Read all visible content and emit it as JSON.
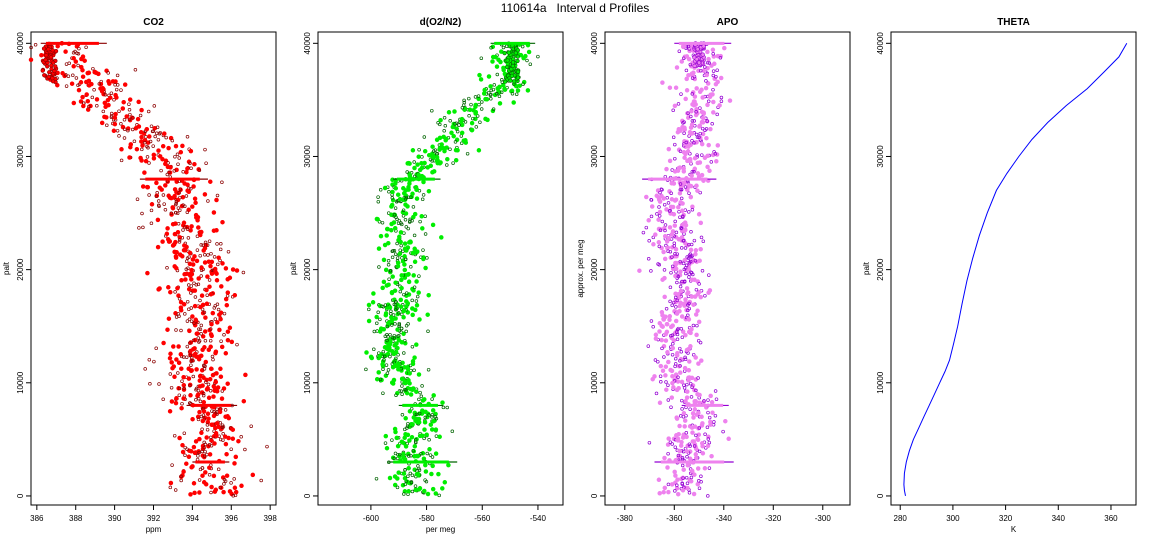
{
  "figure_title": "110614a   Interval d Profiles",
  "chart_data": [
    {
      "type": "scatter",
      "title": "CO2",
      "xlabel": "ppm",
      "ylabel": "palt",
      "xlim": [
        385.7,
        398.3
      ],
      "ylim": [
        -800,
        41000
      ],
      "xticks": [
        386,
        388,
        390,
        392,
        394,
        396,
        398
      ],
      "yticks": [
        0,
        10000,
        20000,
        30000,
        40000
      ],
      "color": "#ff0000",
      "edge_color": "#8b0000",
      "profile": {
        "y": [
          0,
          2000,
          4000,
          6000,
          8000,
          10000,
          12000,
          14000,
          16000,
          18000,
          20000,
          22000,
          24000,
          26000,
          28000,
          30000,
          32000,
          34000,
          36000,
          38000,
          40000
        ],
        "x": [
          395.2,
          394.9,
          394.8,
          395.2,
          394.6,
          394.1,
          394.0,
          394.3,
          394.5,
          394.2,
          394.4,
          394.0,
          393.7,
          393.2,
          393.0,
          392.5,
          391.4,
          390.1,
          389.0,
          388.2,
          387.3
        ]
      },
      "spread": 0.9,
      "levels": [
        {
          "y": 40000,
          "x0": 386.2,
          "x1": 389.6
        },
        {
          "y": 28000,
          "x0": 391.3,
          "x1": 394.8
        },
        {
          "y": 8000,
          "x0": 393.7,
          "x1": 396.3
        },
        {
          "y": 3000,
          "x0": 394.0,
          "x1": 395.9
        }
      ],
      "tail": {
        "y0": 36500,
        "y1": 40000,
        "x0": 386.3,
        "x1": 387.0
      }
    },
    {
      "type": "scatter",
      "title": "d(O2/N2)",
      "xlabel": "per meg",
      "ylabel": "palt",
      "xlim": [
        -619,
        -531
      ],
      "ylim": [
        -800,
        41000
      ],
      "xticks": [
        -600,
        -580,
        -560,
        -540
      ],
      "yticks": [
        0,
        10000,
        20000,
        30000,
        40000
      ],
      "color": "#00ee00",
      "edge_color": "#006400",
      "profile": {
        "y": [
          0,
          2000,
          4000,
          6000,
          8000,
          10000,
          12000,
          14000,
          16000,
          18000,
          20000,
          22000,
          24000,
          26000,
          28000,
          30000,
          32000,
          34000,
          36000,
          38000,
          40000
        ],
        "x": [
          -584,
          -585,
          -586,
          -583,
          -580,
          -588,
          -592,
          -592,
          -591,
          -588,
          -589,
          -587,
          -589,
          -590,
          -587,
          -576,
          -570,
          -564,
          -552,
          -550,
          -549
        ]
      },
      "spread": 4.5,
      "levels": [
        {
          "y": 40000,
          "x0": -557,
          "x1": -541
        },
        {
          "y": 28000,
          "x0": -592,
          "x1": -575
        },
        {
          "y": 8000,
          "x0": -590,
          "x1": -574
        },
        {
          "y": 3000,
          "x0": -594,
          "x1": -569
        }
      ],
      "tail": {
        "y0": 36500,
        "y1": 40000,
        "x0": -552,
        "x1": -547
      }
    },
    {
      "type": "scatter",
      "title": "APO",
      "xlabel": "",
      "ylabel": "approx. per meg",
      "xlim": [
        -388,
        -289
      ],
      "ylim": [
        -800,
        41000
      ],
      "xticks": [
        -380,
        -360,
        -340,
        -320,
        -300
      ],
      "yticks": [
        0,
        10000,
        20000,
        30000,
        40000
      ],
      "color": "#ee82ee",
      "edge_color": "#9400d3",
      "profile": {
        "y": [
          0,
          2000,
          4000,
          6000,
          8000,
          10000,
          12000,
          14000,
          16000,
          18000,
          20000,
          22000,
          24000,
          26000,
          28000,
          30000,
          32000,
          34000,
          36000,
          38000,
          40000
        ],
        "x": [
          -356,
          -355,
          -354,
          -352,
          -351,
          -358,
          -359,
          -360,
          -358,
          -355,
          -357,
          -358,
          -360,
          -361,
          -357,
          -352,
          -352,
          -351,
          -349,
          -351,
          -350
        ]
      },
      "spread": 5.0,
      "levels": [
        {
          "y": 40000,
          "x0": -360,
          "x1": -337
        },
        {
          "y": 28000,
          "x0": -373,
          "x1": -343
        },
        {
          "y": 8000,
          "x0": -357,
          "x1": -338
        },
        {
          "y": 3000,
          "x0": -368,
          "x1": -336
        }
      ],
      "tail": {
        "y0": 38000,
        "y1": 40000,
        "x0": -352,
        "x1": -348
      }
    },
    {
      "type": "line",
      "title": "THETA",
      "xlabel": "K",
      "ylabel": "palt",
      "xlim": [
        276.5,
        369.5
      ],
      "ylim": [
        -800,
        41000
      ],
      "xticks": [
        280,
        300,
        320,
        340,
        360
      ],
      "yticks": [
        0,
        10000,
        20000,
        30000,
        40000
      ],
      "color": "#0000ff",
      "x": [
        282.0,
        281.6,
        281.4,
        281.6,
        282.3,
        283.5,
        285.0,
        287.0,
        289.0,
        291.0,
        293.0,
        295.0,
        297.0,
        298.7,
        300.3,
        301.8,
        303.5,
        305.3,
        307.5,
        310.0,
        313.0,
        316.5,
        320.5,
        325.0,
        330.0,
        336.0,
        343.0,
        351.0,
        357.5,
        363.0,
        366.0
      ],
      "y": [
        0,
        500,
        1000,
        2000,
        3000,
        4000,
        5000,
        6000,
        7000,
        8000,
        9000,
        10000,
        11000,
        12000,
        13500,
        15000,
        17000,
        19000,
        21000,
        23000,
        25000,
        27000,
        28500,
        30000,
        31500,
        33000,
        34500,
        36000,
        37500,
        38800,
        40000
      ]
    }
  ]
}
